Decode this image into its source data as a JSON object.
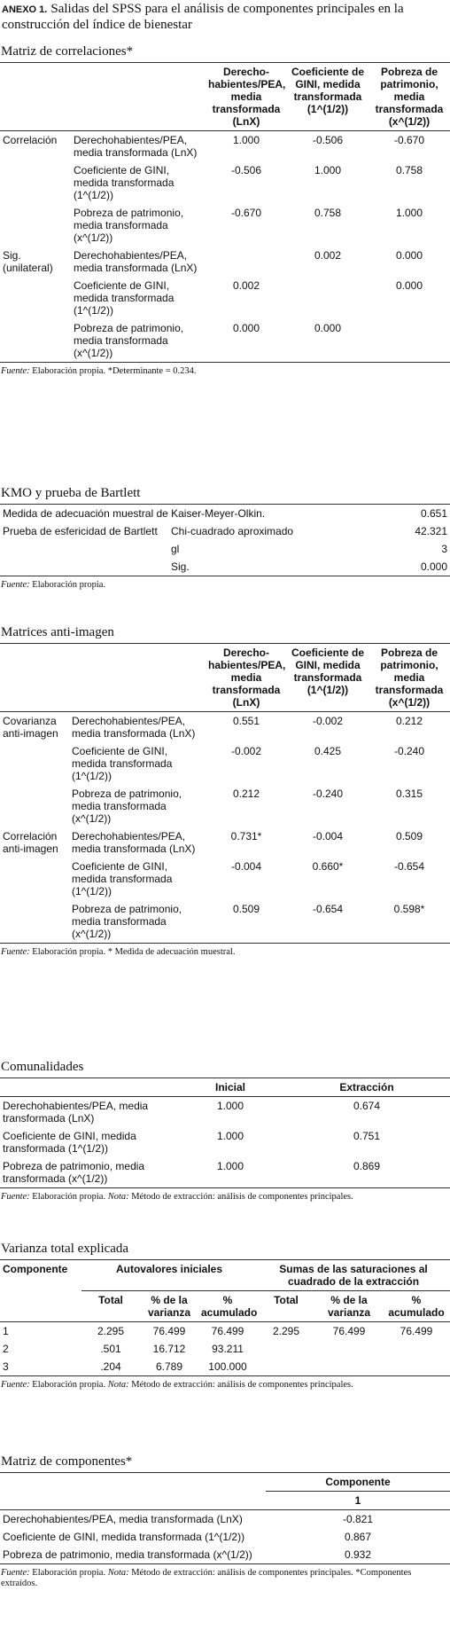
{
  "header": {
    "label": "ANEXO 1.",
    "title": "Salidas del SPSS para el análisis de componentes principales en la construcción del índice de bienestar"
  },
  "sections": [
    {
      "title": "Matriz de correlaciones*",
      "columns": [
        "Derecho-habientes/PEA, media transformada (LnX)",
        "Coeficiente de GINI, medida transformada (1^(1/2))",
        "Pobreza de patrimonio, media transformada (x^(1/2))"
      ],
      "rows": [
        [
          "Correlación",
          "Derechohabientes/PEA, media transformada (LnX)",
          "1.000",
          "-0.506",
          "-0.670"
        ],
        [
          null,
          "Coeficiente de GINI, medida transformada (1^(1/2))",
          "-0.506",
          "1.000",
          "0.758"
        ],
        [
          null,
          "Pobreza de patrimonio, media transformada (x^(1/2))",
          "-0.670",
          "0.758",
          "1.000"
        ],
        [
          "Sig. (unilateral)",
          "Derechohabientes/PEA, media transformada (LnX)",
          null,
          "0.002",
          "0.000"
        ],
        [
          null,
          "Coeficiente de GINI, medida transformada (1^(1/2))",
          "0.002",
          null,
          "0.000"
        ],
        [
          null,
          "Pobreza de patrimonio, media transformada (x^(1/2))",
          "0.000",
          "0.000",
          null
        ]
      ],
      "footnote": {
        "source_label": "Fuente:",
        "source": "Elaboración propia. *Determinante = 0.234."
      }
    },
    {
      "title": "KMO y prueba de Bartlett",
      "rows": [
        [
          "Medida de adecuación muestral de Kaiser-Meyer-Olkin.",
          null,
          "0.651"
        ],
        [
          "Prueba de esfericidad de Bartlett",
          "Chi-cuadrado aproximado",
          "42.321"
        ],
        [
          null,
          "gl",
          "3"
        ],
        [
          null,
          "Sig.",
          "0.000"
        ]
      ],
      "footnote": {
        "source_label": "Fuente:",
        "source": "Elaboración propia."
      }
    },
    {
      "title": "Matrices anti-imagen",
      "columns": [
        "Derecho-habientes/PEA, media transformada (LnX)",
        "Coeficiente de GINI, medida transformada (1^(1/2))",
        "Pobreza de patrimonio, media transformada (x^(1/2))"
      ],
      "rows": [
        [
          "Covarianza anti-imagen",
          "Derechohabientes/PEA, media transformada (LnX)",
          "0.551",
          "-0.002",
          "0.212"
        ],
        [
          null,
          "Coeficiente de GINI, medida transformada (1^(1/2))",
          "-0.002",
          "0.425",
          "-0.240"
        ],
        [
          null,
          "Pobreza de patrimonio, media transformada (x^(1/2))",
          "0.212",
          "-0.240",
          "0.315"
        ],
        [
          "Correlación anti-imagen",
          "Derechohabientes/PEA, media transformada (LnX)",
          "0.731*",
          "-0.004",
          "0.509"
        ],
        [
          null,
          "Coeficiente de GINI, medida transformada (1^(1/2))",
          "-0.004",
          "0.660*",
          "-0.654"
        ],
        [
          null,
          "Pobreza de patrimonio, media transformada (x^(1/2))",
          "0.509",
          "-0.654",
          "0.598*"
        ]
      ],
      "footnote": {
        "source_label": "Fuente:",
        "source": "Elaboración propia. * Medida de adecuación muestral."
      }
    },
    {
      "title": "Comunalidades",
      "columns": [
        "Inicial",
        "Extracción"
      ],
      "rows": [
        [
          "Derechohabientes/PEA, media transformada (LnX)",
          "1.000",
          "0.674"
        ],
        [
          "Coeficiente de GINI, medida transformada (1^(1/2))",
          "1.000",
          "0.751"
        ],
        [
          "Pobreza de patrimonio, media transformada (x^(1/2))",
          "1.000",
          "0.869"
        ]
      ],
      "footnote": {
        "source_label": "Fuente:",
        "source": "Elaboración propia.",
        "note_label": "Nota:",
        "note": "Método de extracción: análisis de componentes principales."
      }
    },
    {
      "title": "Varianza total explicada",
      "columns": [
        "Componente",
        "Autovalores iniciales",
        "Sumas de las saturaciones al cuadrado de la extracción"
      ],
      "subcolumns": [
        "Total",
        "% de la varianza",
        "% acumulado",
        "Total",
        "% de la varianza",
        "% acumulado"
      ],
      "rows": [
        [
          "1",
          "2.295",
          "76.499",
          "76.499",
          "2.295",
          "76.499",
          "76.499"
        ],
        [
          "2",
          ".501",
          "16.712",
          "93.211",
          null,
          null,
          null
        ],
        [
          "3",
          ".204",
          "6.789",
          "100.000",
          null,
          null,
          null
        ]
      ],
      "footnote": {
        "source_label": "Fuente:",
        "source": "Elaboración propia.",
        "note_label": "Nota:",
        "note": "Método de extracción: análisis de componentes principales."
      }
    },
    {
      "title": "Matriz de componentes*",
      "columns": [
        "Componente"
      ],
      "subcolumns": [
        "1"
      ],
      "rows": [
        [
          "Derechohabientes/PEA, media transformada (LnX)",
          "-0.821"
        ],
        [
          "Coeficiente de GINI, medida transformada (1^(1/2))",
          "0.867"
        ],
        [
          "Pobreza de patrimonio, media transformada (x^(1/2))",
          "0.932"
        ]
      ],
      "footnote": {
        "source_label": "Fuente:",
        "source": "Elaboración propia.",
        "note_label": "Nota:",
        "note": "Método de extracción: análisis de componentes principales. *Componentes extraídos."
      }
    }
  ]
}
